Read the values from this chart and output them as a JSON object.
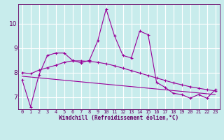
{
  "xlabel": "Windchill (Refroidissement éolien,°C)",
  "bg_color": "#c8ecec",
  "line_color": "#990099",
  "grid_color": "#ffffff",
  "xlim": [
    -0.5,
    23.5
  ],
  "ylim": [
    6.5,
    10.8
  ],
  "xticks": [
    0,
    1,
    2,
    3,
    4,
    5,
    6,
    7,
    8,
    9,
    10,
    11,
    12,
    13,
    14,
    15,
    16,
    17,
    18,
    19,
    20,
    21,
    22,
    23
  ],
  "yticks": [
    7,
    8,
    9,
    10
  ],
  "series1_x": [
    0,
    1,
    2,
    3,
    4,
    5,
    6,
    7,
    8,
    9,
    10,
    11,
    12,
    13,
    14,
    15,
    16,
    17,
    18,
    19,
    20,
    21,
    22,
    23
  ],
  "series1_y": [
    7.7,
    6.6,
    7.9,
    8.7,
    8.8,
    8.8,
    8.5,
    8.4,
    8.5,
    9.3,
    10.6,
    9.5,
    8.7,
    8.6,
    9.7,
    9.55,
    7.6,
    7.4,
    7.15,
    7.1,
    6.95,
    7.1,
    6.95,
    7.3
  ],
  "series2_x": [
    0,
    1,
    2,
    3,
    4,
    5,
    6,
    7,
    8,
    9,
    10,
    11,
    12,
    13,
    14,
    15,
    16,
    17,
    18,
    19,
    20,
    21,
    22,
    23
  ],
  "series2_y": [
    8.0,
    7.95,
    8.1,
    8.2,
    8.3,
    8.42,
    8.48,
    8.48,
    8.46,
    8.42,
    8.36,
    8.28,
    8.18,
    8.08,
    7.98,
    7.88,
    7.78,
    7.68,
    7.58,
    7.5,
    7.42,
    7.36,
    7.3,
    7.25
  ],
  "series3_x": [
    0,
    23
  ],
  "series3_y": [
    7.85,
    7.1
  ],
  "tick_fontsize": 5.0,
  "xlabel_fontsize": 5.5,
  "ytick_fontsize": 6.5
}
